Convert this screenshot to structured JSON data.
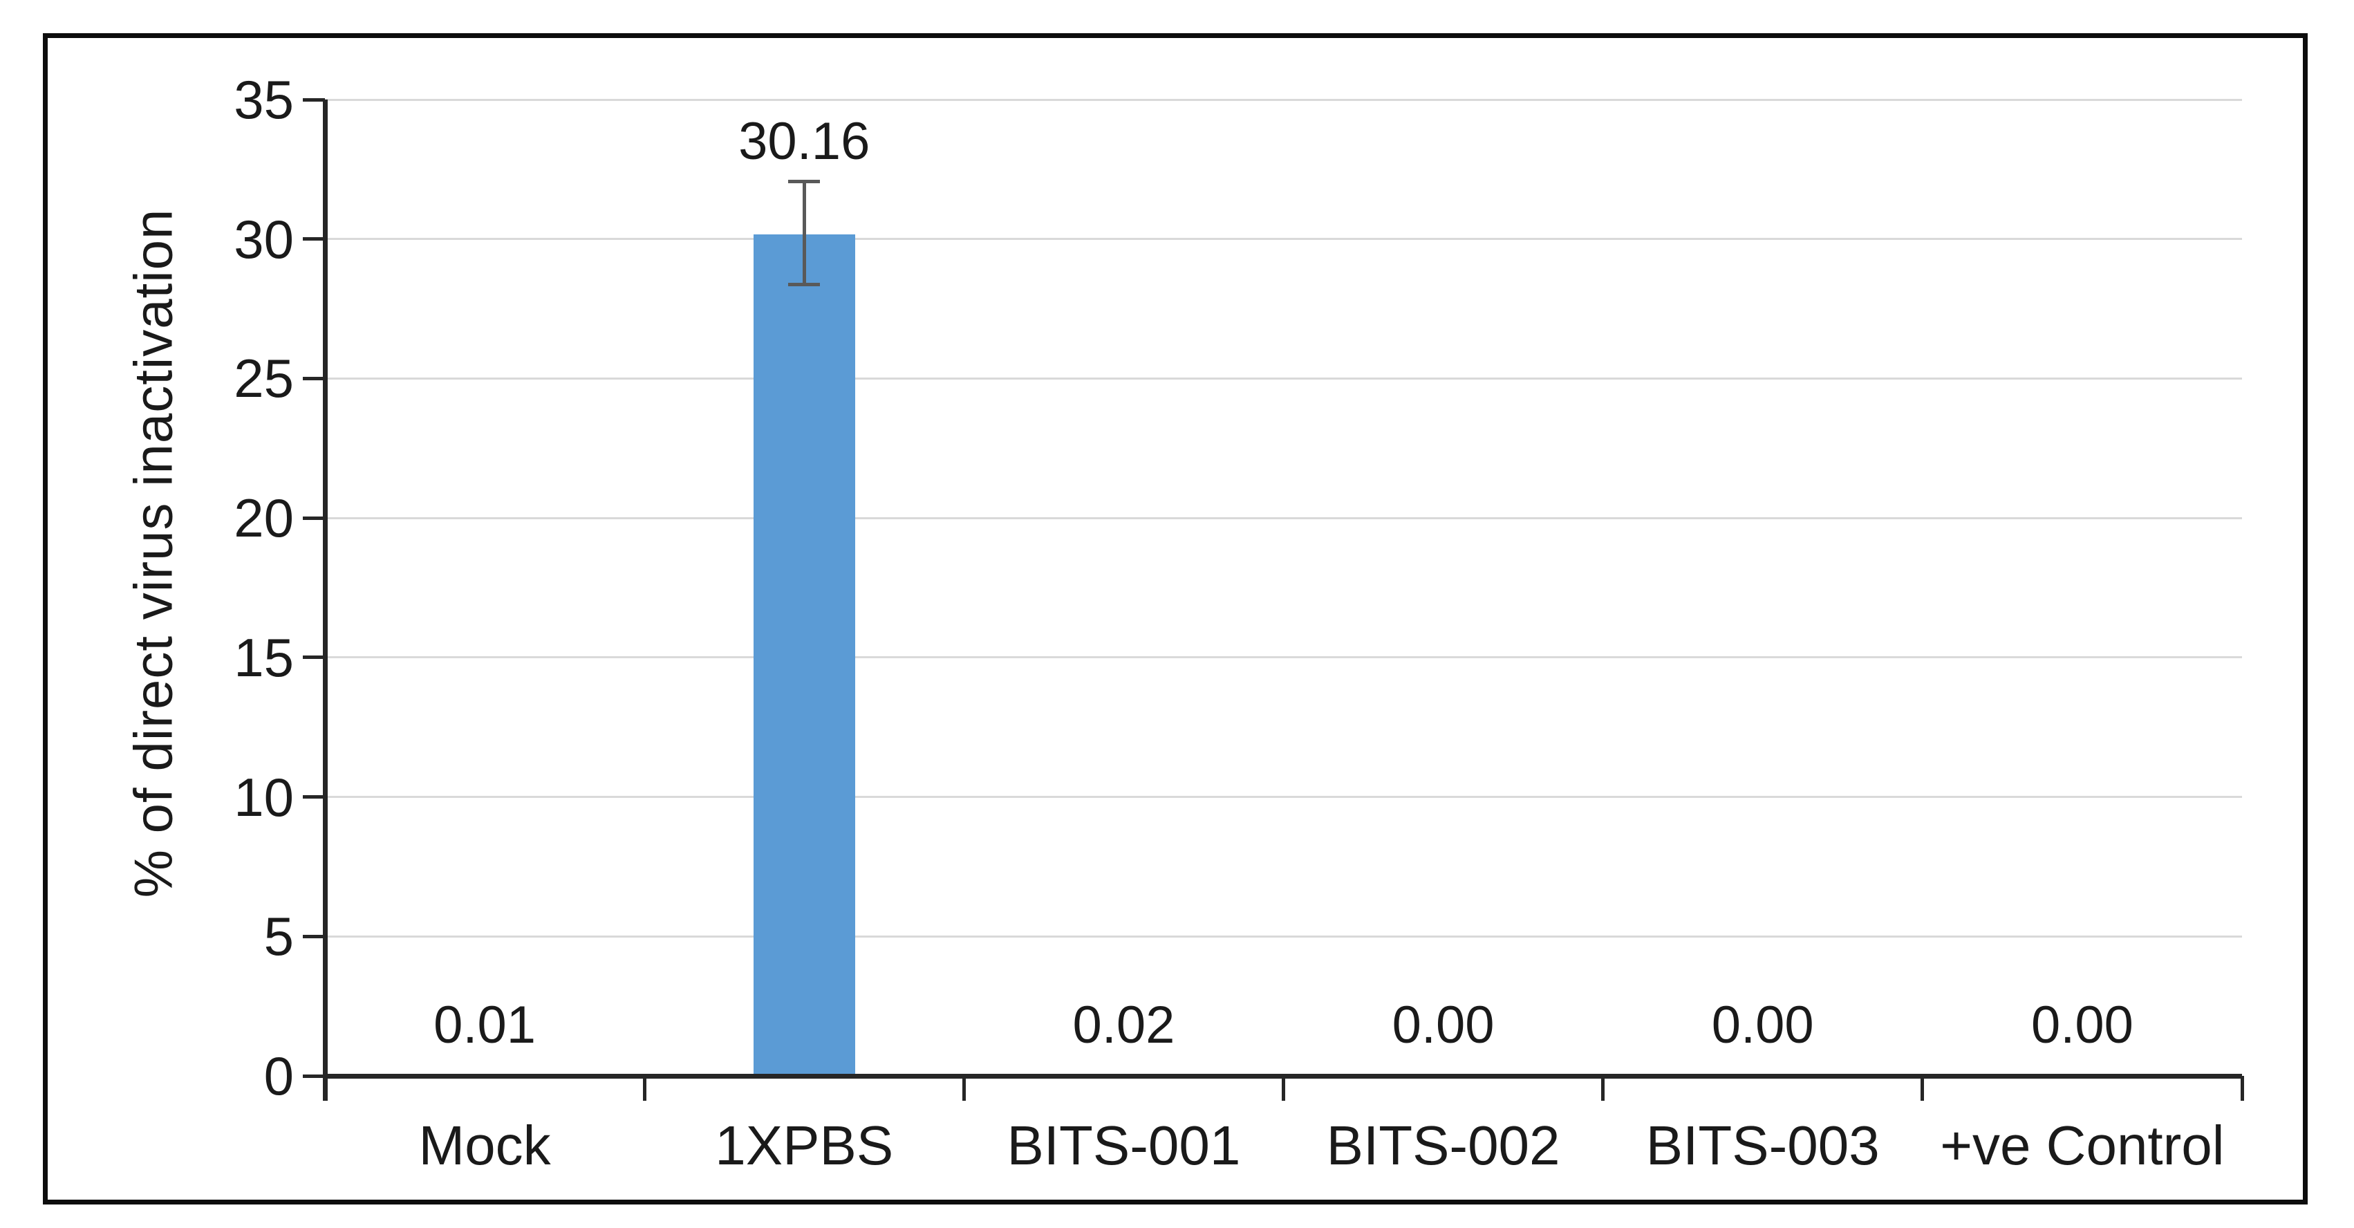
{
  "chart_data": {
    "type": "bar",
    "title": "",
    "xlabel": "",
    "ylabel": "% of direct virus inactivation",
    "categories": [
      "Mock",
      "1XPBS",
      "BITS-001",
      "BITS-002",
      "BITS-003",
      "+ve Control"
    ],
    "values": [
      0.01,
      30.16,
      0.02,
      0.0,
      0.0,
      0.0
    ],
    "data_labels": [
      "0.01",
      "30.16",
      "0.02",
      "0.00",
      "0.00",
      "0.00"
    ],
    "error_bars": [
      null,
      {
        "plus": 1.9,
        "minus": 1.8
      },
      null,
      null,
      null,
      null
    ],
    "ylim": [
      0,
      35
    ],
    "yticks": [
      0,
      5,
      10,
      15,
      20,
      25,
      30,
      35
    ],
    "grid": true,
    "legend": false
  },
  "colors": {
    "bar": "#5B9BD5",
    "gridline": "#D9D9D9",
    "axis": "#262626",
    "error_bar": "#595959",
    "text": "#1a1a1a",
    "frame": "#0d0d0d",
    "background": "#FFFFFF"
  }
}
